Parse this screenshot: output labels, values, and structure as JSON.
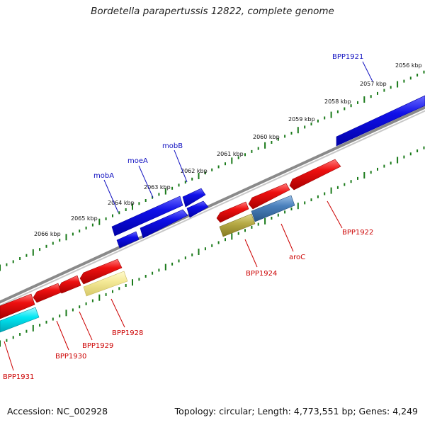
{
  "title": "Bordetella parapertussis 12822, complete genome",
  "footer": {
    "accession": "Accession: NC_002928",
    "summary": "Topology: circular; Length: 4,773,551 bp; Genes: 4,249"
  },
  "kbp_ticks": [
    "2056 kbp",
    "2057 kbp",
    "2058 kbp",
    "2059 kbp",
    "2060 kbp",
    "2061 kbp",
    "2062 kbp",
    "2063 kbp",
    "2064 kbp",
    "2065 kbp",
    "2066 kbp"
  ],
  "colors": {
    "backbone": "#8a8a8a",
    "tick_green": "#1a7a1a",
    "forward_gene": "#1010e0",
    "reverse_gene": "#e01010",
    "cyan_gene": "#00e0f0",
    "olive_gene": "#b0a440",
    "pale_gene": "#f0e68c",
    "steel_gene": "#4a80b8",
    "label_blue": "#1010c0",
    "label_red": "#cc0000"
  },
  "genes_forward": [
    {
      "label": "BPP1921"
    },
    {
      "label": "mobB"
    },
    {
      "label": "moeA"
    },
    {
      "label": "mobA"
    }
  ],
  "genes_reverse": [
    {
      "label": "BPP1922"
    },
    {
      "label": "aroC"
    },
    {
      "label": "BPP1924"
    },
    {
      "label": "BPP1928"
    },
    {
      "label": "BPP1929"
    },
    {
      "label": "BPP1930"
    },
    {
      "label": "BPP1931"
    }
  ]
}
